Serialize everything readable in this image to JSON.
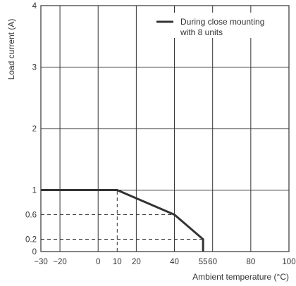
{
  "chart_data": {
    "type": "line",
    "title": "",
    "xlabel": "Ambient temperature (°C)",
    "ylabel": "Load current (A)",
    "xlim": [
      -30,
      100
    ],
    "ylim": [
      0,
      4
    ],
    "grid": true,
    "legend_position": "top-right",
    "x_ticks": [
      -30,
      -20,
      0,
      10,
      20,
      40,
      55,
      60,
      80,
      100
    ],
    "x_tick_labels": [
      "−30",
      "−20",
      "0",
      "10",
      "20",
      "40",
      "55",
      "60",
      "80",
      "100"
    ],
    "y_ticks": [
      0,
      0.2,
      0.6,
      1,
      2,
      3,
      4
    ],
    "y_tick_labels": [
      "0",
      "0.2",
      "0.6",
      "1",
      "2",
      "3",
      "4"
    ],
    "major_gridlines_x": [
      -20,
      0,
      20,
      40,
      60,
      80
    ],
    "major_gridlines_y": [
      1,
      2,
      3
    ],
    "reference_lines": [
      {
        "points": [
          [
            -30,
            0.6
          ],
          [
            40,
            0.6
          ]
        ],
        "style": "dashed"
      },
      {
        "points": [
          [
            -30,
            0.2
          ],
          [
            55,
            0.2
          ]
        ],
        "style": "dashed"
      },
      {
        "points": [
          [
            10,
            0
          ],
          [
            10,
            1
          ]
        ],
        "style": "dashed"
      }
    ],
    "series": [
      {
        "name": "During close mounting\nwith 8 units",
        "legend_lines": [
          "During close mounting",
          "with 8 units"
        ],
        "color": "#333333",
        "x": [
          -30,
          10,
          40,
          55,
          55
        ],
        "y": [
          1,
          1,
          0.6,
          0.2,
          0
        ]
      }
    ]
  }
}
